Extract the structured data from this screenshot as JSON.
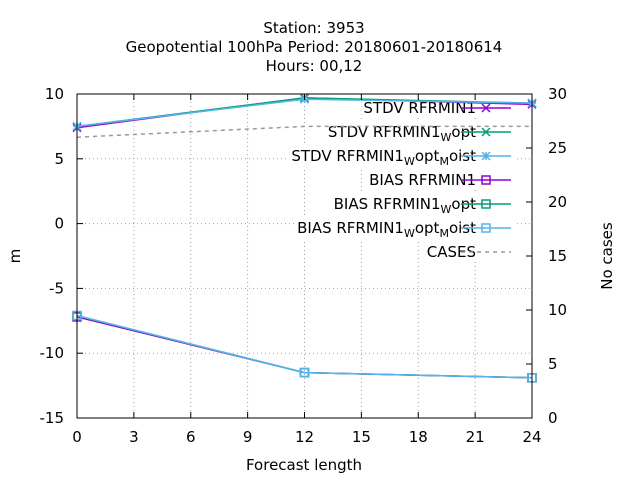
{
  "chart_data": {
    "type": "line",
    "title_lines": [
      "Station:     3953",
      "Geopotential 100hPa   Period: 20180601-20180614",
      "Hours:  00,12"
    ],
    "xlabel": "Forecast length",
    "ylabel": "m",
    "y2label": "No cases",
    "xlim": [
      0,
      24
    ],
    "ylim": [
      -15,
      10
    ],
    "y2lim": [
      0,
      30
    ],
    "xticks": [
      0,
      3,
      6,
      9,
      12,
      15,
      18,
      21,
      24
    ],
    "yticks": [
      -15,
      -10,
      -5,
      0,
      5,
      10
    ],
    "y2ticks": [
      0,
      5,
      10,
      15,
      20,
      25,
      30
    ],
    "grid": true,
    "legend_position": "top-right",
    "series": [
      {
        "key": "stdv1",
        "legend": {
          "main": "STDV RFRMIN1",
          "parts": []
        },
        "color": "#9400d3",
        "marker": "x",
        "axis": "y",
        "dashed": false,
        "x": [
          0,
          12,
          24
        ],
        "y": [
          7.4,
          9.7,
          9.2
        ]
      },
      {
        "key": "stdv2",
        "legend": {
          "main": "STDV RFRMIN1",
          "parts": [
            {
              "sub": "W"
            },
            {
              "text": "opt"
            }
          ]
        },
        "color": "#009e73",
        "marker": "x",
        "axis": "y",
        "dashed": false,
        "x": [
          0,
          12,
          24
        ],
        "y": [
          7.5,
          9.7,
          9.3
        ]
      },
      {
        "key": "stdv3",
        "legend": {
          "main": "STDV RFRMIN1",
          "parts": [
            {
              "sub": "W"
            },
            {
              "text": "opt"
            },
            {
              "sub": "M"
            },
            {
              "text": "oist"
            }
          ]
        },
        "color": "#56b4e9",
        "marker": "star",
        "axis": "y",
        "dashed": false,
        "x": [
          0,
          12,
          24
        ],
        "y": [
          7.5,
          9.6,
          9.3
        ]
      },
      {
        "key": "bias1",
        "legend": {
          "main": "BIAS RFRMIN1",
          "parts": []
        },
        "color": "#9400d3",
        "marker": "square",
        "axis": "y",
        "dashed": false,
        "x": [
          0,
          12,
          24
        ],
        "y": [
          -7.2,
          -11.5,
          -11.9
        ]
      },
      {
        "key": "bias2",
        "legend": {
          "main": "BIAS RFRMIN1",
          "parts": [
            {
              "sub": "W"
            },
            {
              "text": "opt"
            }
          ]
        },
        "color": "#009e73",
        "marker": "square",
        "axis": "y",
        "dashed": false,
        "x": [
          0,
          12,
          24
        ],
        "y": [
          -7.1,
          -11.5,
          -11.9
        ]
      },
      {
        "key": "bias3",
        "legend": {
          "main": "BIAS RFRMIN1",
          "parts": [
            {
              "sub": "W"
            },
            {
              "text": "opt"
            },
            {
              "sub": "M"
            },
            {
              "text": "oist"
            }
          ]
        },
        "color": "#56b4e9",
        "marker": "square",
        "axis": "y",
        "dashed": false,
        "x": [
          0,
          12,
          24
        ],
        "y": [
          -7.1,
          -11.5,
          -11.9
        ]
      },
      {
        "key": "cases",
        "legend": {
          "main": "CASES",
          "parts": []
        },
        "color": "#999999",
        "marker": "none",
        "axis": "y2",
        "dashed": true,
        "x": [
          0,
          12,
          24
        ],
        "y": [
          26,
          27,
          27
        ]
      }
    ]
  }
}
